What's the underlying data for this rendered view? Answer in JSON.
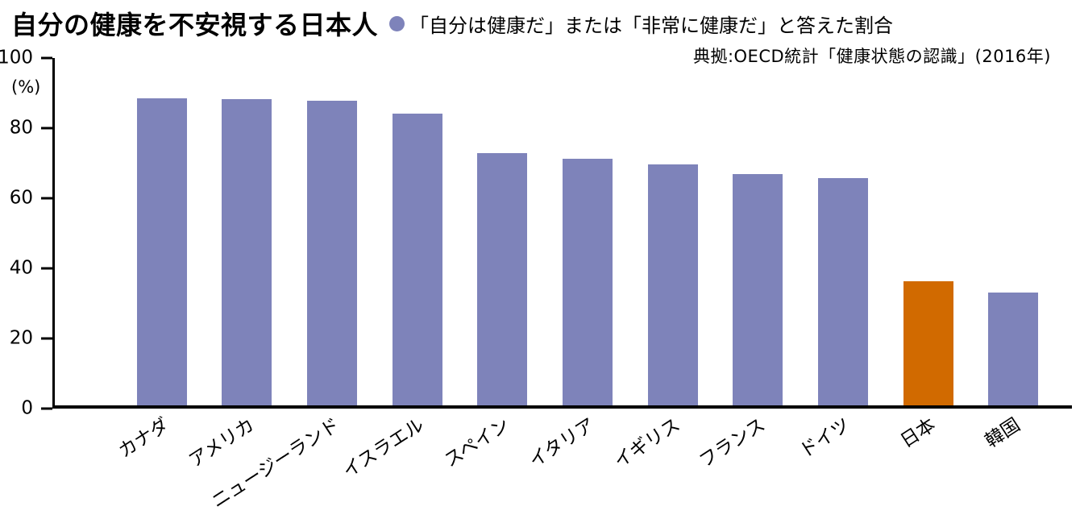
{
  "header": {
    "title": "自分の健康を不安視する日本人",
    "legend_label": "「自分は健康だ」または「非常に健康だ」と答えた割合",
    "source": "典拠:OECD統計「健康状態の認識」(2016年)"
  },
  "chart_data": {
    "type": "bar",
    "title": "自分の健康を不安視する日本人",
    "legend": "「自分は健康だ」または「非常に健康だ」と答えた割合",
    "source": "典拠:OECD統計「健康状態の認識」(2016年)",
    "categories": [
      "カナダ",
      "アメリカ",
      "ニュージーランド",
      "イスラエル",
      "スペイン",
      "イタリア",
      "イギリス",
      "フランス",
      "ドイツ",
      "日本",
      "韓国"
    ],
    "values": [
      88.5,
      88.1,
      87.6,
      84.1,
      72.6,
      71.1,
      69.3,
      66.5,
      65.5,
      35.8,
      32.5
    ],
    "xlabel": "",
    "ylabel": "(%)",
    "ylim": [
      0,
      100
    ],
    "yticks": [
      0,
      20,
      40,
      60,
      80,
      100
    ],
    "grid": false,
    "legend_position": "top",
    "highlight_index": 9,
    "highlight_category": "日本",
    "colors": {
      "bar": "#7e83ba",
      "highlight": "#d16a00",
      "axis": "#000000"
    }
  }
}
